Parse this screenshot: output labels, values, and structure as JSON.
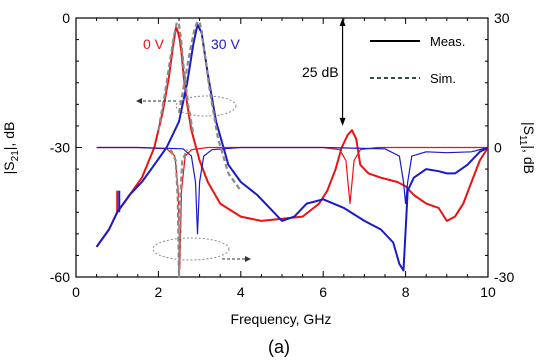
{
  "chart_data": {
    "type": "line",
    "caption": "(a)",
    "xlabel": "Frequency, GHz",
    "ylabel_left": "|S21|, dB",
    "ylabel_left_main": "|S",
    "ylabel_left_sub": "21",
    "ylabel_left_tail": "|, dB",
    "ylabel_right": "|S11|, dB",
    "ylabel_right_main": "|S",
    "ylabel_right_sub": "11",
    "ylabel_right_tail": "|, dB",
    "xlim": [
      0,
      10
    ],
    "ylim_left": [
      -60,
      0
    ],
    "ylim_right": [
      -30,
      30
    ],
    "x_ticks": [
      "0",
      "2",
      "4",
      "6",
      "8",
      "10"
    ],
    "y_left_ticks": [
      "0",
      "-30",
      "-60"
    ],
    "y_right_ticks": [
      "30",
      "0",
      "-30"
    ],
    "grid": false,
    "legend": {
      "position": "top-right",
      "entries": [
        {
          "label": "Meas.",
          "style": "solid",
          "color": "#000000"
        },
        {
          "label": "Sim.",
          "style": "dashed",
          "color": "#2f4f4f"
        }
      ]
    },
    "annotations": {
      "label_0v": "0 V",
      "label_30v": "30 V",
      "delta_label": "25 dB",
      "delta_arrow_x": 6.47,
      "delta_arrow_y": [
        0,
        -25
      ]
    },
    "colors": {
      "v0": "#ee1111",
      "v30": "#1a1ac8",
      "sim": "#8a8a8a"
    },
    "series": [
      {
        "name": "0 V",
        "axis": "left",
        "measured": true,
        "color": "#ee1111",
        "x": [
          0.5,
          0.8,
          1.0,
          1.3,
          1.6,
          1.9,
          2.1,
          2.25,
          2.35,
          2.43,
          2.48,
          2.52,
          2.56,
          2.62,
          2.7,
          2.8,
          3.0,
          3.2,
          3.5,
          4.0,
          4.5,
          5.0,
          5.5,
          5.9,
          6.1,
          6.3,
          6.45,
          6.6,
          6.7,
          6.8,
          6.9,
          7.1,
          7.4,
          7.8,
          8.0,
          8.2,
          8.5,
          8.8,
          9.0,
          9.2,
          9.4,
          9.6,
          9.8,
          10.0
        ],
        "y": [
          -53,
          -49,
          -45,
          -41,
          -37,
          -30,
          -22,
          -14,
          -7,
          -2,
          -3.5,
          -5,
          -8,
          -14,
          -20,
          -26,
          -33,
          -38,
          -43,
          -46,
          -47,
          -46.5,
          -46,
          -43,
          -40,
          -35,
          -30,
          -27,
          -26,
          -28,
          -34,
          -36,
          -37,
          -38,
          -39,
          -41,
          -43,
          -44,
          -47,
          -46,
          -43,
          -38,
          -33,
          -30
        ]
      },
      {
        "name": "30 V",
        "axis": "left",
        "measured": true,
        "color": "#1a1ac8",
        "x": [
          0.5,
          0.8,
          1.0,
          1.3,
          1.6,
          1.9,
          2.2,
          2.5,
          2.7,
          2.85,
          2.95,
          3.05,
          3.2,
          3.4,
          3.7,
          4.0,
          4.4,
          4.8,
          5.0,
          5.3,
          5.6,
          6.0,
          6.5,
          7.0,
          7.4,
          7.7,
          7.85,
          7.95,
          8.05,
          8.2,
          8.5,
          8.8,
          9.0,
          9.2,
          9.5,
          9.8,
          10.0
        ],
        "y": [
          -53,
          -49,
          -45,
          -41,
          -38,
          -34,
          -30,
          -24,
          -15,
          -6,
          -1.5,
          -3.5,
          -13,
          -24,
          -34,
          -38,
          -41,
          -45,
          -47,
          -46,
          -43,
          -42,
          -44,
          -47,
          -49,
          -52,
          -57,
          -58.5,
          -40,
          -37,
          -35,
          -35.5,
          -36,
          -36,
          -34,
          -31,
          -30
        ]
      },
      {
        "name": "S11 0 V",
        "axis": "right",
        "measured": true,
        "color": "#ee1111",
        "x": [
          0.5,
          1.5,
          2.2,
          2.4,
          2.48,
          2.52,
          2.56,
          2.65,
          2.8,
          3.2,
          4.5,
          6.0,
          6.4,
          6.55,
          6.65,
          6.75,
          6.9,
          7.3,
          9.0,
          10.0
        ],
        "y": [
          0,
          0,
          -0.3,
          -2,
          -10,
          -28,
          -10,
          -2,
          -0.5,
          0,
          0,
          0,
          -0.5,
          -3,
          -13,
          -3,
          -0.5,
          0,
          0,
          0
        ]
      },
      {
        "name": "S11 30 V",
        "axis": "right",
        "measured": true,
        "color": "#1a1ac8",
        "x": [
          0.5,
          1.5,
          2.6,
          2.8,
          2.9,
          2.95,
          3.0,
          3.1,
          3.3,
          4.0,
          6.0,
          7.5,
          7.85,
          7.95,
          8.0,
          8.05,
          8.15,
          8.5,
          9.0,
          9.6,
          10.0
        ],
        "y": [
          0,
          0,
          -0.3,
          -2,
          -8,
          -20,
          -8,
          -2,
          -0.5,
          0,
          0,
          -0.3,
          -2,
          -8,
          -13,
          -8,
          -2,
          -1,
          -1.2,
          -1,
          0
        ]
      },
      {
        "name": "Sim. 0 V",
        "axis": "left",
        "measured": false,
        "color": "#8a8a8a",
        "x": [
          2.0,
          2.15,
          2.28,
          2.38,
          2.45,
          2.5,
          2.55,
          2.62,
          2.72,
          2.85
        ],
        "y": [
          -26,
          -18,
          -10,
          -4,
          -1,
          -1.5,
          -5,
          -12,
          -20,
          -27
        ]
      },
      {
        "name": "Sim. 30 V",
        "axis": "left",
        "measured": false,
        "color": "#8a8a8a",
        "x": [
          2.5,
          2.65,
          2.78,
          2.88,
          2.95,
          3.0,
          3.05,
          3.12,
          3.25,
          3.45,
          3.7,
          4.0
        ],
        "y": [
          -22,
          -14,
          -7,
          -2.5,
          -0.8,
          -1,
          -3,
          -8,
          -17,
          -28,
          -36,
          -40
        ]
      },
      {
        "name": "Sim. S11 0 V",
        "axis": "right",
        "measured": false,
        "color": "#8a8a8a",
        "x": [
          2.3,
          2.42,
          2.47,
          2.5,
          2.53,
          2.58,
          2.7
        ],
        "y": [
          -0.5,
          -3,
          -12,
          -30,
          -12,
          -3,
          -0.5
        ]
      }
    ]
  }
}
